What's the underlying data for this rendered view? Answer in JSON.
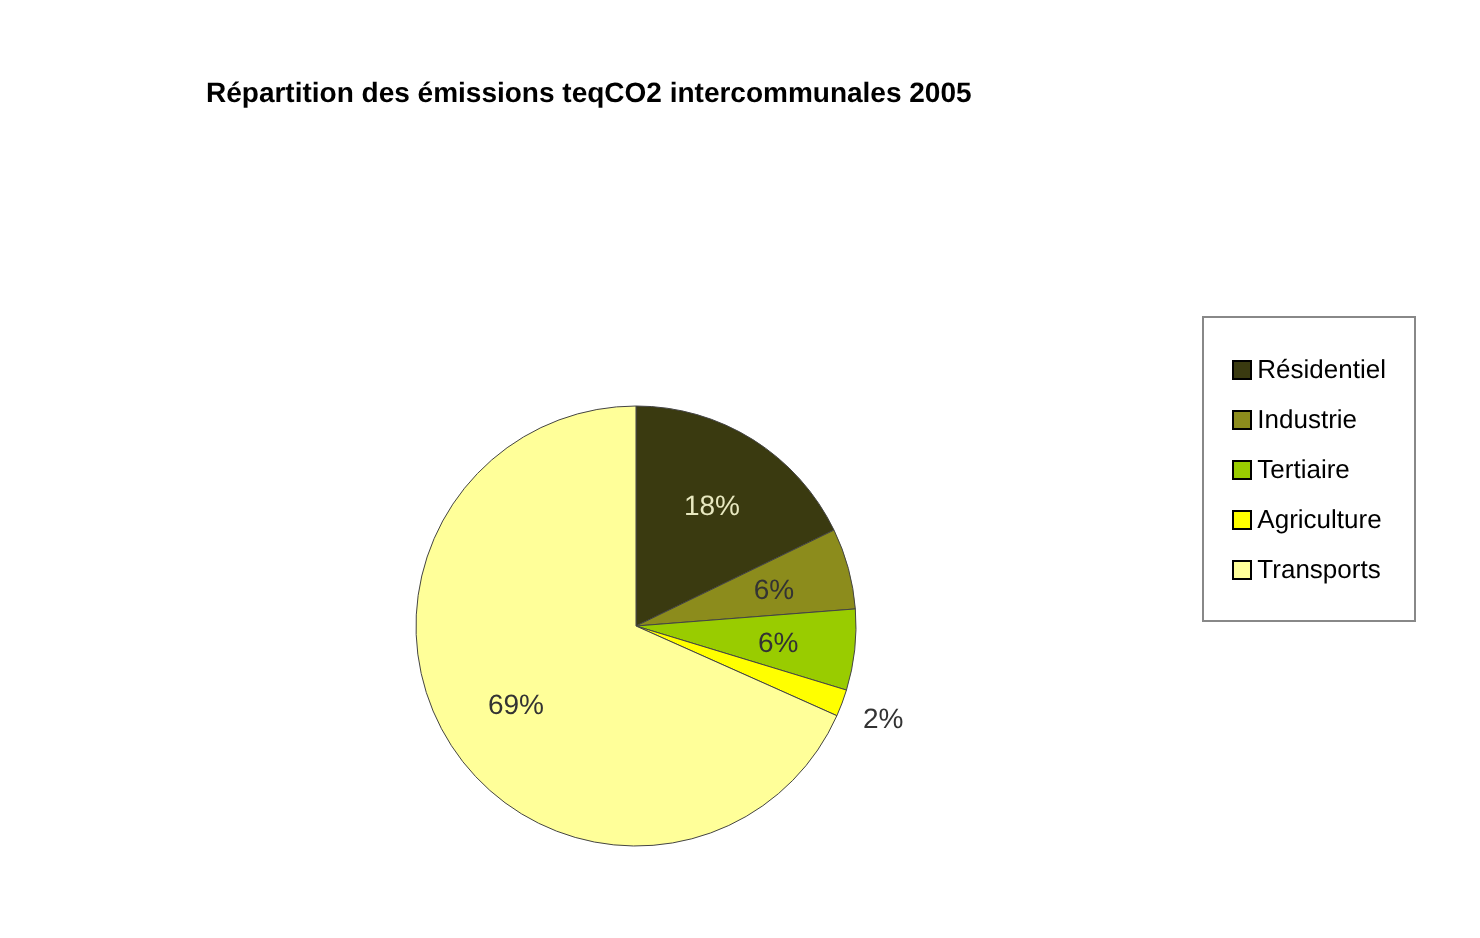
{
  "chart_data": {
    "type": "pie",
    "title": "Répartition des émissions teqCO2 intercommunales 2005",
    "categories": [
      "Résidentiel",
      "Industrie",
      "Tertiaire",
      "Agriculture",
      "Transports"
    ],
    "values": [
      18,
      6,
      6,
      2,
      69
    ],
    "colors": [
      "#3a3a10",
      "#8c8c1c",
      "#99cc00",
      "#ffff00",
      "#ffff99"
    ],
    "value_labels": [
      "18%",
      "6%",
      "6%",
      "2%",
      "69%"
    ],
    "legend": "right"
  }
}
